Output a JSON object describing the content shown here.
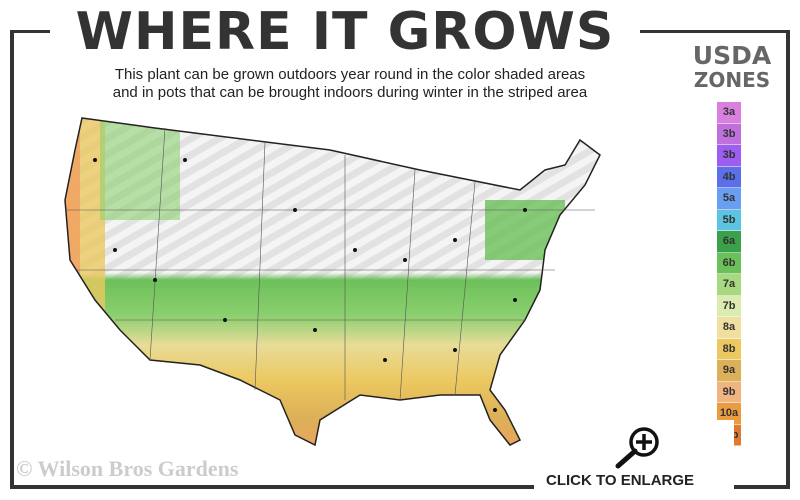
{
  "header": {
    "title": "WHERE IT GROWS",
    "subtitle_line1": "This plant can be grown outdoors year round in the color shaded areas",
    "subtitle_line2": "and in pots that can be brought indoors during winter in the striped area"
  },
  "legend": {
    "title_line1": "USDA",
    "title_line2": "ZONES",
    "zones": [
      {
        "label": "3a",
        "color": "#d97fe0"
      },
      {
        "label": "3b",
        "color": "#c070dc"
      },
      {
        "label": "3b",
        "color": "#9b5ef0"
      },
      {
        "label": "4b",
        "color": "#5a6fe8"
      },
      {
        "label": "5a",
        "color": "#6a9ef0"
      },
      {
        "label": "5b",
        "color": "#5cc4e0"
      },
      {
        "label": "6a",
        "color": "#3aa04a"
      },
      {
        "label": "6b",
        "color": "#6cc05a"
      },
      {
        "label": "7a",
        "color": "#a8d880"
      },
      {
        "label": "7b",
        "color": "#dcecb0"
      },
      {
        "label": "8a",
        "color": "#f0e0a0"
      },
      {
        "label": "8b",
        "color": "#ecc860"
      },
      {
        "label": "9a",
        "color": "#dcb058"
      },
      {
        "label": "9b",
        "color": "#f0b480"
      },
      {
        "label": "10a",
        "color": "#ec9c40"
      },
      {
        "label": "10b",
        "color": "#e07a30"
      }
    ]
  },
  "footer": {
    "copyright": "© Wilson Bros Gardens",
    "enlarge_label": "CLICK TO ENLARGE",
    "enlarge_icon": "zoom-in-icon"
  }
}
